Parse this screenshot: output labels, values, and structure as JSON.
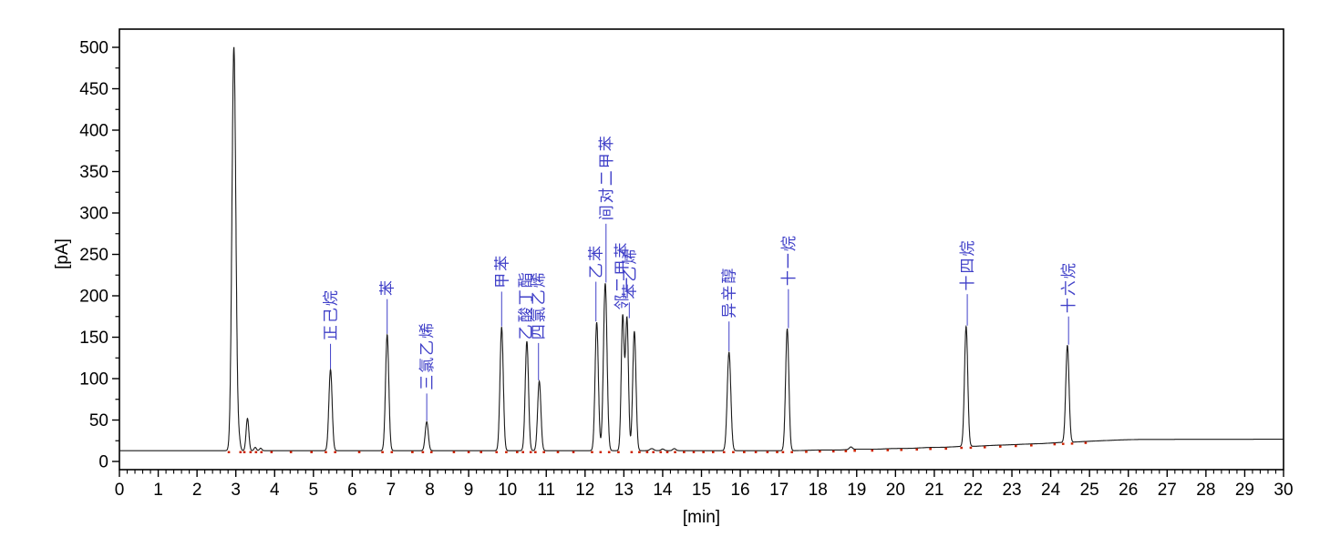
{
  "chart_data": {
    "type": "line",
    "title": "",
    "xlabel": "[min]",
    "ylabel": "[pA]",
    "x_range": [
      0,
      30
    ],
    "y_range_pa": [
      -10,
      522
    ],
    "y_major_ticks": [
      0,
      50,
      100,
      150,
      200,
      250,
      300,
      350,
      400,
      450,
      500
    ],
    "y_minor_step": 25,
    "x_major_step": 1,
    "x_minor_step": 0.2,
    "grid": "off",
    "legend": "none",
    "baseline_pa": [
      [
        0,
        13
      ],
      [
        17.4,
        13
      ],
      [
        18.0,
        13.8
      ],
      [
        18.6,
        13.9
      ],
      [
        19.0,
        14.8
      ],
      [
        19.6,
        14.9
      ],
      [
        19.9,
        15.6
      ],
      [
        20.4,
        15.8
      ],
      [
        20.8,
        16.8
      ],
      [
        21.3,
        17.2
      ],
      [
        21.7,
        18.2
      ],
      [
        22.1,
        18.4
      ],
      [
        22.5,
        19.4
      ],
      [
        23.0,
        20.2
      ],
      [
        23.4,
        21.0
      ],
      [
        23.8,
        21.6
      ],
      [
        24.2,
        22.8
      ],
      [
        24.6,
        23.4
      ],
      [
        25.0,
        24.4
      ],
      [
        25.4,
        25.2
      ],
      [
        25.8,
        26.0
      ],
      [
        26.3,
        26.6
      ],
      [
        30,
        26.8
      ]
    ],
    "peaks": [
      {
        "name": "",
        "rt": 2.95,
        "apex_pa": 500,
        "sigma": 0.05
      },
      {
        "name": "",
        "rt": 3.08,
        "apex_pa": 26,
        "sigma": 0.035
      },
      {
        "name": "",
        "rt": 3.3,
        "apex_pa": 52,
        "sigma": 0.035
      },
      {
        "name": "",
        "rt": 3.5,
        "apex_pa": 17,
        "sigma": 0.03
      },
      {
        "name": "",
        "rt": 3.64,
        "apex_pa": 16,
        "sigma": 0.03
      },
      {
        "name": "正己烷",
        "rt": 5.44,
        "apex_pa": 111,
        "sigma": 0.042,
        "label_x": 5.44,
        "label_base_pa": 146
      },
      {
        "name": "苯",
        "rt": 6.9,
        "apex_pa": 153,
        "sigma": 0.042,
        "label_x": 6.9,
        "label_base_pa": 200
      },
      {
        "name": "三氯乙烯",
        "rt": 7.92,
        "apex_pa": 48,
        "sigma": 0.04,
        "label_x": 7.92,
        "label_base_pa": 86
      },
      {
        "name": "甲苯",
        "rt": 9.85,
        "apex_pa": 162,
        "sigma": 0.042,
        "label_x": 9.85,
        "label_base_pa": 209
      },
      {
        "name": "乙酸丁酯",
        "rt": 10.5,
        "apex_pa": 145,
        "sigma": 0.042,
        "label_x": 10.47,
        "label_base_pa": 147
      },
      {
        "name": "四氯乙烯",
        "rt": 10.82,
        "apex_pa": 97,
        "sigma": 0.042,
        "label_x": 10.8,
        "label_base_pa": 147
      },
      {
        "name": "乙苯",
        "rt": 12.3,
        "apex_pa": 168,
        "sigma": 0.042,
        "label_x": 12.28,
        "label_base_pa": 221
      },
      {
        "name": "间对二甲苯",
        "rt": 12.52,
        "apex_pa": 215,
        "sigma": 0.046,
        "label_x": 12.54,
        "label_base_pa": 291
      },
      {
        "name": "邻二甲苯",
        "rt": 12.97,
        "apex_pa": 175,
        "sigma": 0.038,
        "label_x": 12.95,
        "label_base_pa": 183
      },
      {
        "name": "苯乙烯",
        "rt": 13.08,
        "apex_pa": 172,
        "sigma": 0.038,
        "label_x": 13.14,
        "label_base_pa": 196
      },
      {
        "name": "",
        "rt": 13.27,
        "apex_pa": 157,
        "sigma": 0.042
      },
      {
        "name": "",
        "rt": 13.72,
        "apex_pa": 15.5,
        "sigma": 0.05
      },
      {
        "name": "",
        "rt": 14.0,
        "apex_pa": 15,
        "sigma": 0.04
      },
      {
        "name": "",
        "rt": 14.3,
        "apex_pa": 15.5,
        "sigma": 0.04
      },
      {
        "name": "异辛醇",
        "rt": 15.71,
        "apex_pa": 132,
        "sigma": 0.046,
        "label_x": 15.71,
        "label_base_pa": 173
      },
      {
        "name": "十一烷",
        "rt": 17.21,
        "apex_pa": 160,
        "sigma": 0.042,
        "label_x": 17.24,
        "label_base_pa": 212
      },
      {
        "name": "",
        "rt": 18.85,
        "apex_pa": 17.5,
        "sigma": 0.04
      },
      {
        "name": "十四烷",
        "rt": 21.82,
        "apex_pa": 163,
        "sigma": 0.042,
        "label_x": 21.85,
        "label_base_pa": 206
      },
      {
        "name": "十六烷",
        "rt": 24.43,
        "apex_pa": 140,
        "sigma": 0.042,
        "label_x": 24.46,
        "label_base_pa": 179
      }
    ],
    "integration_marks_min": [
      2.82,
      3.12,
      3.22,
      3.38,
      3.52,
      3.66,
      3.92,
      4.42,
      4.95,
      5.32,
      5.56,
      6.18,
      6.78,
      7.02,
      7.55,
      7.82,
      8.04,
      8.62,
      9.0,
      9.32,
      9.72,
      9.97,
      10.25,
      10.4,
      10.6,
      10.72,
      10.94,
      11.3,
      11.7,
      12.18,
      12.4,
      12.62,
      12.86,
      13.2,
      13.4,
      13.6,
      13.76,
      13.95,
      14.12,
      14.32,
      14.55,
      14.8,
      15.05,
      15.3,
      15.58,
      15.82,
      16.1,
      16.4,
      16.7,
      16.95,
      17.1,
      17.33,
      17.7,
      18.05,
      18.4,
      18.72,
      18.95,
      19.4,
      19.8,
      20.15,
      20.55,
      20.9,
      21.3,
      21.7,
      21.94,
      22.3,
      22.7,
      23.1,
      23.5,
      24.1,
      24.32,
      24.55,
      24.9
    ],
    "colors": {
      "trace": "#1a1a1a",
      "peak_label": "#4040c8",
      "integration_mark": "#cc2200",
      "axis": "#000000",
      "background": "#ffffff"
    }
  }
}
